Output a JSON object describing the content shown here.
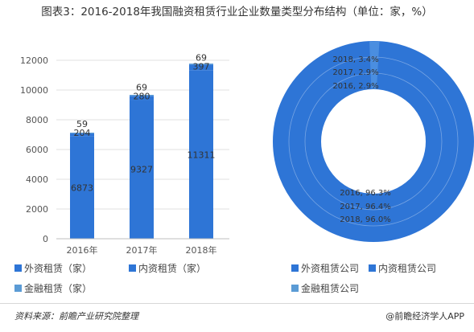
{
  "title": "图表3：2016-2018年我国融资租赁行业企业数量类型分布结构（单位：家，%）",
  "chart_data": [
    {
      "type": "bar",
      "stacked": true,
      "categories": [
        "2016年",
        "2017年",
        "2018年"
      ],
      "series": [
        {
          "name": "外资租赁（家）",
          "values": [
            6873,
            9327,
            11311
          ],
          "color": "#2e75d6"
        },
        {
          "name": "内资租赁（家）",
          "values": [
            204,
            280,
            397
          ],
          "color": "#2e75d6"
        },
        {
          "name": "金融租赁（家）",
          "values": [
            59,
            69,
            69
          ],
          "color": "#5b9bd5"
        }
      ],
      "yticks": [
        "0",
        "2000",
        "4000",
        "6000",
        "8000",
        "10000",
        "12000"
      ],
      "ylim": [
        0,
        12000
      ],
      "grid": true,
      "legend": "bottom"
    },
    {
      "type": "donut",
      "rings": [
        {
          "year": "2016",
          "labels": [
            "2016, 96.3%",
            "2016, 2.9%"
          ]
        },
        {
          "year": "2017",
          "labels": [
            "2017, 96.4%",
            "2017, 2.9%"
          ]
        },
        {
          "year": "2018",
          "labels": [
            "2018, 96.0%",
            "2018, 3.4%"
          ]
        }
      ],
      "series": [
        {
          "name": "外资租赁公司",
          "color": "#2e75d6"
        },
        {
          "name": "内资租赁公司",
          "color": "#2e75d6"
        },
        {
          "name": "金融租赁公司",
          "color": "#5b9bd5"
        }
      ],
      "legend": "bottom"
    }
  ],
  "footer": {
    "source": "资料来源：前瞻产业研究院整理",
    "brand": "@前瞻经济学人APP"
  }
}
